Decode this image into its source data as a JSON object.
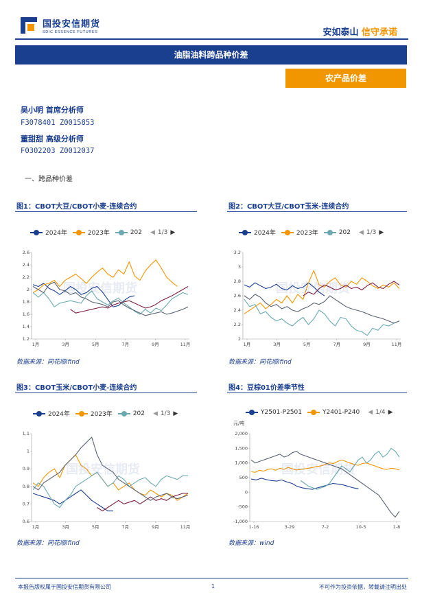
{
  "header": {
    "company_cn": "国投安信期货",
    "company_en": "SDIC ESSENCE FUTURES",
    "slogan_a": "安如泰山",
    "slogan_b": "信守承诺"
  },
  "report": {
    "title": "油脂油料跨品种价差",
    "tag": "农产品价差"
  },
  "analysts": [
    {
      "name": "吴小明 首席分析师",
      "code": "F3078401 Z0015853"
    },
    {
      "name": "董甜甜 高级分析师",
      "code": "F0302203 Z0012037"
    }
  ],
  "section_title": "一、跨品种价差",
  "colors": {
    "navy": "#1b3f8f",
    "orange": "#f29600",
    "teal": "#6aa9b0",
    "maroon": "#7b1d3f",
    "grey": "#5a6370"
  },
  "watermark": "国投安信期货",
  "charts": [
    {
      "title": "图1：CBOT大豆/CBOT小麦-连续合约",
      "source": "数据来源：同花顺ifind",
      "legend": [
        "2024年",
        "2023年",
        "202"
      ],
      "pager": "1/3",
      "chart_data": {
        "type": "line",
        "x_ticks": [
          "1月",
          "3月",
          "5月",
          "7月",
          "9月",
          "11月"
        ],
        "y_ticks": [
          "1.2",
          "1.4",
          "1.6",
          "1.8",
          "2",
          "2.2",
          "2.4",
          "2.6"
        ],
        "ylim": [
          1.2,
          2.6
        ],
        "series": [
          {
            "name": "2024年",
            "color": "#1b3f8f",
            "values": [
              2.08,
              2.05,
              2.1,
              2.02,
              1.98,
              1.92,
              1.98,
              2.05,
              2.0,
              1.92,
              1.95,
              2.02,
              2.05,
              1.96,
              1.84,
              1.72,
              1.74,
              1.82,
              1.88,
              1.9
            ]
          },
          {
            "name": "2023年",
            "color": "#f29600",
            "values": [
              1.95,
              2.0,
              2.08,
              2.1,
              2.15,
              2.05,
              2.15,
              2.2,
              2.25,
              2.18,
              2.1,
              2.2,
              2.28,
              2.35,
              2.25,
              2.2,
              2.32,
              2.25,
              2.45,
              2.22,
              2.15,
              2.3,
              2.4,
              2.48,
              2.35,
              2.2,
              2.12,
              2.05
            ]
          },
          {
            "name": "",
            "color": "#6aa9b0",
            "values": [
              1.95,
              1.88,
              1.95,
              1.85,
              1.72,
              1.78,
              1.8,
              1.82,
              1.8,
              1.78,
              1.9,
              1.98,
              1.85,
              1.8,
              1.75,
              1.82,
              1.86,
              1.78,
              1.72,
              1.65,
              1.6,
              1.68,
              1.62,
              1.7,
              1.66,
              1.75,
              1.85,
              1.9,
              1.95,
              1.92
            ]
          },
          {
            "name": "",
            "color": "#7b1d3f",
            "values": [
              null,
              null,
              null,
              null,
              null,
              null,
              null,
              1.68,
              1.62,
              1.64,
              1.66,
              1.68,
              1.7,
              1.72,
              1.7,
              1.75,
              1.78,
              1.8,
              1.82,
              1.78,
              1.74,
              1.7,
              1.72,
              1.76,
              1.82,
              1.86,
              1.9,
              1.95,
              2.0,
              2.05
            ]
          },
          {
            "name": "",
            "color": "#5a6370",
            "values": [
              2.05,
              2.0,
              1.95,
              2.08,
              2.12,
              2.0,
              1.98,
              1.92,
              1.95,
              1.88,
              1.85,
              1.8,
              1.78,
              1.76,
              1.72,
              1.8,
              1.82,
              1.75,
              1.7,
              1.66,
              1.62,
              1.58,
              1.6,
              1.62,
              1.64,
              1.6,
              1.62,
              1.65,
              1.68,
              1.72
            ]
          }
        ]
      }
    },
    {
      "title": "图2：CBOT大豆/CBOT玉米-连续合约",
      "source": "数据来源：同花顺ifind",
      "legend": [
        "2024年",
        "2023年",
        "202"
      ],
      "pager": "1/3",
      "chart_data": {
        "type": "line",
        "x_ticks": [
          "1月",
          "3月",
          "5月",
          "7月",
          "9月",
          "11月"
        ],
        "y_ticks": [
          "2",
          "2.2",
          "2.4",
          "2.6",
          "2.8",
          "3",
          "3.2"
        ],
        "ylim": [
          2.0,
          3.2
        ],
        "series": [
          {
            "name": "2024年",
            "color": "#1b3f8f",
            "values": [
              2.75,
              2.72,
              2.78,
              2.74,
              2.7,
              2.72,
              2.76,
              2.7,
              2.68,
              2.74,
              2.7,
              2.72,
              2.78,
              2.72,
              2.65,
              2.6
            ]
          },
          {
            "name": "2023年",
            "color": "#f29600",
            "values": [
              2.35,
              2.4,
              2.45,
              2.5,
              2.42,
              2.48,
              2.55,
              2.5,
              2.6,
              2.5,
              2.62,
              2.55,
              2.78,
              2.95,
              2.75,
              2.72,
              2.8,
              2.85,
              2.75,
              2.72,
              2.8,
              2.76,
              2.85,
              2.8,
              2.74,
              2.7,
              2.75,
              2.72,
              2.78,
              2.7
            ]
          },
          {
            "name": "",
            "color": "#6aa9b0",
            "values": [
              2.55,
              2.45,
              2.48,
              2.35,
              2.38,
              2.3,
              2.25,
              2.28,
              2.22,
              2.18,
              2.25,
              2.3,
              2.2,
              2.28,
              2.4,
              2.35,
              2.25,
              2.18,
              2.3,
              2.28,
              2.18,
              2.12,
              2.1,
              2.05,
              2.15,
              2.12,
              2.2,
              2.18,
              2.22,
              2.25
            ]
          },
          {
            "name": "",
            "color": "#7b1d3f",
            "values": [
              null,
              null,
              null,
              null,
              null,
              null,
              null,
              null,
              null,
              null,
              null,
              2.6,
              2.65,
              2.62,
              2.7,
              2.75,
              2.72,
              2.68,
              2.7,
              2.75,
              2.7,
              2.72,
              2.68,
              2.74,
              2.78,
              2.72,
              2.7,
              2.76,
              2.8,
              2.75
            ]
          },
          {
            "name": "",
            "color": "#5a6370",
            "values": [
              2.6,
              2.55,
              2.62,
              2.58,
              2.5,
              2.45,
              2.48,
              2.42,
              2.45,
              2.4,
              2.38,
              2.42,
              2.45,
              2.5,
              2.48,
              2.52,
              2.6,
              2.55,
              2.5,
              2.45,
              2.42,
              2.4,
              2.38,
              2.35,
              2.32,
              2.3,
              2.28,
              2.25,
              2.22,
              2.25
            ]
          }
        ]
      }
    },
    {
      "title": "图3：CBOT玉米/CBOT小麦-连续合约",
      "source": "数据来源：同花顺ifind",
      "legend": [
        "2024年",
        "2023年",
        "202"
      ],
      "pager": "1/3",
      "chart_data": {
        "type": "line",
        "x_ticks": [
          "1月",
          "3月",
          "5月",
          "7月",
          "9月",
          "11月"
        ],
        "y_ticks": [
          "0.6",
          "0.7",
          "0.8",
          "0.9",
          "1",
          "1.1"
        ],
        "ylim": [
          0.6,
          1.1
        ],
        "series": [
          {
            "name": "2024年",
            "color": "#1b3f8f",
            "values": [
              0.76,
              0.75,
              0.74,
              0.73,
              0.72,
              0.7,
              0.72,
              0.74,
              0.76,
              0.78,
              0.75,
              0.72,
              0.7,
              0.68,
              0.66,
              0.66
            ]
          },
          {
            "name": "2023年",
            "color": "#f29600",
            "values": [
              0.82,
              0.8,
              0.85,
              0.88,
              0.9,
              0.85,
              0.92,
              0.95,
              0.98,
              0.92,
              0.9,
              0.86,
              0.88,
              0.84,
              0.8,
              0.82,
              0.78,
              0.8,
              0.82,
              0.78,
              0.76,
              0.75,
              0.78,
              0.76,
              0.74,
              0.76,
              0.75,
              0.72,
              0.74,
              0.76
            ]
          },
          {
            "name": "",
            "color": "#6aa9b0",
            "values": [
              0.78,
              0.82,
              0.8,
              0.75,
              0.7,
              0.68,
              0.72,
              0.75,
              0.8,
              0.82,
              0.84,
              0.86,
              0.88,
              0.84,
              0.8,
              0.82,
              0.86,
              0.84,
              0.8,
              0.82,
              0.84,
              0.85,
              0.82,
              0.8,
              0.84,
              0.86,
              0.85,
              0.84,
              0.86,
              0.86
            ]
          },
          {
            "name": "",
            "color": "#7b1d3f",
            "values": [
              null,
              null,
              null,
              null,
              null,
              null,
              null,
              null,
              null,
              null,
              null,
              null,
              0.68,
              0.66,
              0.68,
              0.7,
              0.72,
              0.7,
              0.71,
              0.72,
              0.7,
              0.72,
              0.74,
              0.72,
              0.73,
              0.72,
              0.74,
              0.75,
              0.76,
              0.76
            ]
          },
          {
            "name": "",
            "color": "#5a6370",
            "values": [
              0.8,
              0.78,
              0.82,
              0.84,
              0.86,
              0.88,
              0.92,
              0.95,
              0.98,
              1.02,
              1.05,
              1.08,
              0.98,
              0.92,
              0.9,
              0.88,
              0.84,
              0.82,
              0.8,
              0.78,
              0.76,
              0.74,
              0.72,
              0.74,
              0.75,
              0.76,
              0.74,
              0.73,
              0.74,
              0.75
            ]
          }
        ]
      }
    },
    {
      "title": "图4：豆棕01价差季节性",
      "source": "数据来源：wind",
      "legend": [
        "Y2501-P2501",
        "Y2401-P240"
      ],
      "pager": "1/4",
      "y_unit": "元/吨",
      "chart_data": {
        "type": "line",
        "x_ticks": [
          "1-16",
          "3-29",
          "7-2",
          "10-5",
          "1-8"
        ],
        "y_ticks": [
          "-1,000",
          "-500",
          "0",
          "500",
          "1,000",
          "1,500",
          "2,000"
        ],
        "ylim": [
          -1000,
          2000
        ],
        "series": [
          {
            "name": "Y2501-P2501",
            "color": "#1b3f8f",
            "values": [
              450,
              420,
              480,
              430,
              400,
              380,
              420,
              350,
              300,
              200,
              150,
              120,
              100,
              150,
              200,
              250,
              300,
              280,
              250,
              200,
              150,
              120
            ]
          },
          {
            "name": "Y2401-P240",
            "color": "#f29600",
            "values": [
              700,
              680,
              750,
              720,
              780,
              800,
              750,
              820,
              780,
              850,
              800,
              760,
              780,
              800,
              820,
              850,
              880,
              900,
              950,
              1000,
              980,
              1050,
              1100,
              1050,
              1000,
              950,
              920,
              980,
              1000,
              950,
              900,
              850,
              800,
              780,
              820,
              800,
              760
            ]
          },
          {
            "name": "",
            "color": "#6aa9b0",
            "values": [
              null,
              null,
              null,
              null,
              null,
              null,
              null,
              null,
              null,
              null,
              null,
              null,
              400,
              300,
              200,
              150,
              100,
              150,
              200,
              300,
              500,
              700,
              900,
              800,
              700,
              900,
              1100,
              1200,
              1000,
              1100,
              1300,
              1400,
              1200,
              1300,
              1500,
              1400,
              1200
            ]
          },
          {
            "name": "",
            "color": "#5a6370",
            "values": [
              1100,
              1000,
              1050,
              1100,
              1150,
              1200,
              1250,
              1300,
              1200,
              1250,
              1350,
              1400,
              1300,
              1250,
              1200,
              1150,
              1100,
              1050,
              1000,
              950,
              900,
              850,
              800,
              700,
              600,
              500,
              400,
              300,
              200,
              100,
              0,
              -100,
              -300,
              -500,
              -700,
              -850,
              -650
            ]
          }
        ]
      }
    }
  ],
  "footer": {
    "left": "本报告版权属于国投安信期货有限公司",
    "page": "1",
    "right": "不可作为投资依据，转载请注明出处"
  }
}
